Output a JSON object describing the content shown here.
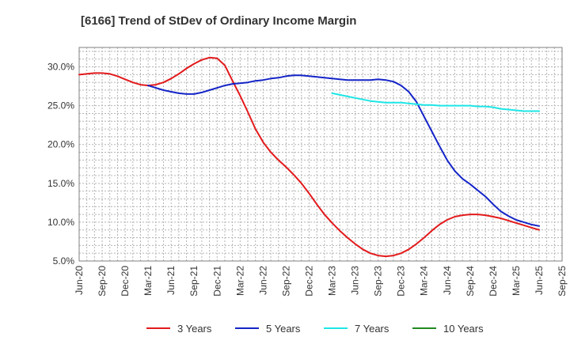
{
  "chart_data": {
    "type": "line",
    "title": "[6166]  Trend of StDev of Ordinary Income Margin",
    "xlabel": "",
    "ylabel": "",
    "ylim": [
      5.0,
      32.5
    ],
    "y_ticks": [
      "5.0%",
      "10.0%",
      "15.0%",
      "20.0%",
      "25.0%",
      "30.0%"
    ],
    "x_ticks": [
      "Jun-20",
      "Sep-20",
      "Dec-20",
      "Mar-21",
      "Jun-21",
      "Sep-21",
      "Dec-21",
      "Mar-22",
      "Jun-22",
      "Sep-22",
      "Dec-22",
      "Mar-23",
      "Jun-23",
      "Sep-23",
      "Dec-23",
      "Mar-24",
      "Jun-24",
      "Sep-24",
      "Dec-24",
      "Mar-25",
      "Jun-25",
      "Sep-25"
    ],
    "grid": true,
    "legend_position": "bottom",
    "series": [
      {
        "name": "3 Years",
        "color": "#e31a1c",
        "points": [
          [
            "Jun-20",
            29.0
          ],
          [
            "Jul-20",
            29.1
          ],
          [
            "Aug-20",
            29.2
          ],
          [
            "Sep-20",
            29.2
          ],
          [
            "Oct-20",
            29.1
          ],
          [
            "Nov-20",
            28.8
          ],
          [
            "Dec-20",
            28.4
          ],
          [
            "Jan-21",
            28.0
          ],
          [
            "Feb-21",
            27.7
          ],
          [
            "Mar-21",
            27.6
          ],
          [
            "Apr-21",
            27.7
          ],
          [
            "May-21",
            28.0
          ],
          [
            "Jun-21",
            28.5
          ],
          [
            "Jul-21",
            29.1
          ],
          [
            "Aug-21",
            29.8
          ],
          [
            "Sep-21",
            30.4
          ],
          [
            "Oct-21",
            30.9
          ],
          [
            "Nov-21",
            31.2
          ],
          [
            "Dec-21",
            31.1
          ],
          [
            "Jan-22",
            30.2
          ],
          [
            "Feb-22",
            28.2
          ],
          [
            "Mar-22",
            26.3
          ],
          [
            "Apr-22",
            24.2
          ],
          [
            "May-22",
            22.0
          ],
          [
            "Jun-22",
            20.3
          ],
          [
            "Jul-22",
            19.0
          ],
          [
            "Aug-22",
            18.0
          ],
          [
            "Sep-22",
            17.1
          ],
          [
            "Oct-22",
            16.1
          ],
          [
            "Nov-22",
            15.0
          ],
          [
            "Dec-22",
            13.7
          ],
          [
            "Jan-23",
            12.3
          ],
          [
            "Feb-23",
            11.0
          ],
          [
            "Mar-23",
            9.9
          ],
          [
            "Apr-23",
            8.9
          ],
          [
            "May-23",
            8.0
          ],
          [
            "Jun-23",
            7.2
          ],
          [
            "Jul-23",
            6.5
          ],
          [
            "Aug-23",
            6.0
          ],
          [
            "Sep-23",
            5.7
          ],
          [
            "Oct-23",
            5.6
          ],
          [
            "Nov-23",
            5.7
          ],
          [
            "Dec-23",
            6.0
          ],
          [
            "Jan-24",
            6.5
          ],
          [
            "Feb-24",
            7.2
          ],
          [
            "Mar-24",
            8.0
          ],
          [
            "Apr-24",
            8.9
          ],
          [
            "May-24",
            9.7
          ],
          [
            "Jun-24",
            10.3
          ],
          [
            "Jul-24",
            10.7
          ],
          [
            "Aug-24",
            10.9
          ],
          [
            "Sep-24",
            11.0
          ],
          [
            "Oct-24",
            11.0
          ],
          [
            "Nov-24",
            10.9
          ],
          [
            "Dec-24",
            10.7
          ],
          [
            "Jan-25",
            10.5
          ],
          [
            "Feb-25",
            10.2
          ],
          [
            "Mar-25",
            9.9
          ],
          [
            "Apr-25",
            9.6
          ],
          [
            "May-25",
            9.3
          ],
          [
            "Jun-25",
            9.0
          ]
        ]
      },
      {
        "name": "5 Years",
        "color": "#1424c8",
        "points": [
          [
            "Mar-21",
            27.6
          ],
          [
            "Apr-21",
            27.3
          ],
          [
            "May-21",
            27.0
          ],
          [
            "Jun-21",
            26.8
          ],
          [
            "Jul-21",
            26.6
          ],
          [
            "Aug-21",
            26.5
          ],
          [
            "Sep-21",
            26.5
          ],
          [
            "Oct-21",
            26.7
          ],
          [
            "Nov-21",
            27.0
          ],
          [
            "Dec-21",
            27.3
          ],
          [
            "Jan-22",
            27.6
          ],
          [
            "Feb-22",
            27.8
          ],
          [
            "Mar-22",
            27.9
          ],
          [
            "Apr-22",
            28.0
          ],
          [
            "May-22",
            28.2
          ],
          [
            "Jun-22",
            28.3
          ],
          [
            "Jul-22",
            28.5
          ],
          [
            "Aug-22",
            28.6
          ],
          [
            "Sep-22",
            28.8
          ],
          [
            "Oct-22",
            28.9
          ],
          [
            "Nov-22",
            28.9
          ],
          [
            "Dec-22",
            28.8
          ],
          [
            "Jan-23",
            28.7
          ],
          [
            "Feb-23",
            28.6
          ],
          [
            "Mar-23",
            28.5
          ],
          [
            "Apr-23",
            28.4
          ],
          [
            "May-23",
            28.3
          ],
          [
            "Jun-23",
            28.3
          ],
          [
            "Jul-23",
            28.3
          ],
          [
            "Aug-23",
            28.3
          ],
          [
            "Sep-23",
            28.4
          ],
          [
            "Oct-23",
            28.3
          ],
          [
            "Nov-23",
            28.1
          ],
          [
            "Dec-23",
            27.6
          ],
          [
            "Jan-24",
            26.8
          ],
          [
            "Feb-24",
            25.5
          ],
          [
            "Mar-24",
            23.6
          ],
          [
            "Apr-24",
            21.7
          ],
          [
            "May-24",
            19.8
          ],
          [
            "Jun-24",
            18.0
          ],
          [
            "Jul-24",
            16.6
          ],
          [
            "Aug-24",
            15.6
          ],
          [
            "Sep-24",
            14.9
          ],
          [
            "Oct-24",
            14.1
          ],
          [
            "Nov-24",
            13.3
          ],
          [
            "Dec-24",
            12.3
          ],
          [
            "Jan-25",
            11.4
          ],
          [
            "Feb-25",
            10.8
          ],
          [
            "Mar-25",
            10.3
          ],
          [
            "Apr-25",
            10.0
          ],
          [
            "May-25",
            9.7
          ],
          [
            "Jun-25",
            9.5
          ]
        ]
      },
      {
        "name": "7 Years",
        "color": "#1ee6e6",
        "points": [
          [
            "Mar-23",
            26.6
          ],
          [
            "Apr-23",
            26.4
          ],
          [
            "May-23",
            26.2
          ],
          [
            "Jun-23",
            26.0
          ],
          [
            "Jul-23",
            25.8
          ],
          [
            "Aug-23",
            25.6
          ],
          [
            "Sep-23",
            25.5
          ],
          [
            "Oct-23",
            25.4
          ],
          [
            "Nov-23",
            25.4
          ],
          [
            "Dec-23",
            25.4
          ],
          [
            "Jan-24",
            25.3
          ],
          [
            "Feb-24",
            25.2
          ],
          [
            "Mar-24",
            25.1
          ],
          [
            "Apr-24",
            25.1
          ],
          [
            "May-24",
            25.0
          ],
          [
            "Jun-24",
            25.0
          ],
          [
            "Jul-24",
            25.0
          ],
          [
            "Aug-24",
            25.0
          ],
          [
            "Sep-24",
            25.0
          ],
          [
            "Oct-24",
            24.9
          ],
          [
            "Nov-24",
            24.9
          ],
          [
            "Dec-24",
            24.8
          ],
          [
            "Jan-25",
            24.6
          ],
          [
            "Feb-25",
            24.5
          ],
          [
            "Mar-25",
            24.4
          ],
          [
            "Apr-25",
            24.3
          ],
          [
            "May-25",
            24.3
          ],
          [
            "Jun-25",
            24.3
          ]
        ]
      },
      {
        "name": "10 Years",
        "color": "#228b22",
        "points": []
      }
    ]
  }
}
